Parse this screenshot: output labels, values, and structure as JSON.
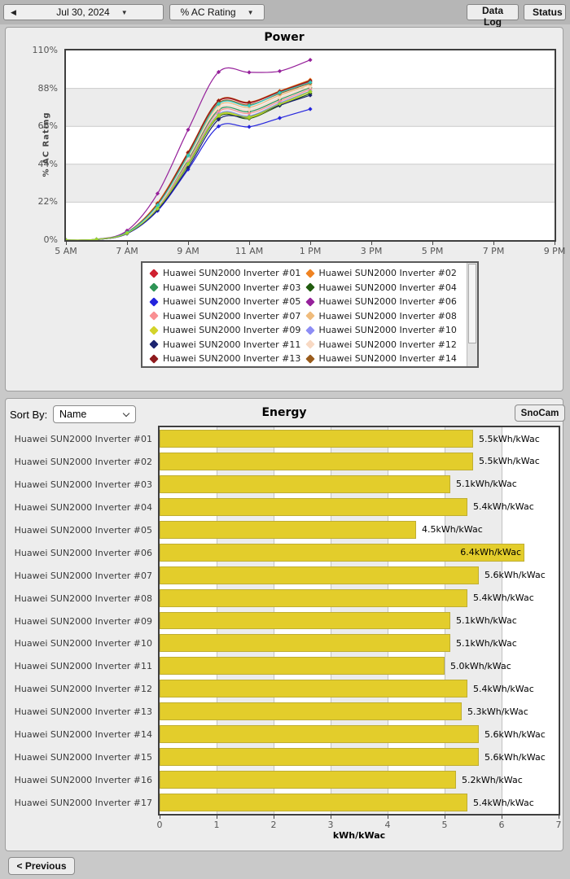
{
  "toolbar": {
    "date": "Jul 30, 2024",
    "metric": "% AC Rating",
    "data_log": "Data Log",
    "status": "Status"
  },
  "icons": {
    "back_arrow": "◀",
    "dropdown_arrow": "▼"
  },
  "energy": {
    "sort_label": "Sort By:",
    "sort_value": "Name",
    "snocam": "SnoCam"
  },
  "footer": {
    "previous": "< Previous"
  },
  "legend": {
    "visible_items": 14
  },
  "chart_data": [
    {
      "type": "line",
      "title": "Power",
      "ylabel": "% AC Rating",
      "ylim": [
        0,
        110
      ],
      "y_ticks": [
        {
          "label": "0%",
          "value": 0
        },
        {
          "label": "22%",
          "value": 22
        },
        {
          "label": "44%",
          "value": 44
        },
        {
          "label": "66%",
          "value": 66
        },
        {
          "label": "88%",
          "value": 88
        },
        {
          "label": "110%",
          "value": 110
        }
      ],
      "x_range_hours": [
        5,
        21
      ],
      "x_ticks": [
        {
          "label": "5 AM",
          "hour": 5
        },
        {
          "label": "7 AM",
          "hour": 7
        },
        {
          "label": "9 AM",
          "hour": 9
        },
        {
          "label": "11 AM",
          "hour": 11
        },
        {
          "label": "1 PM",
          "hour": 13
        },
        {
          "label": "3 PM",
          "hour": 15
        },
        {
          "label": "5 PM",
          "hour": 17
        },
        {
          "label": "7 PM",
          "hour": 19
        },
        {
          "label": "9 PM",
          "hour": 21
        }
      ],
      "x_hours": [
        5,
        6,
        7,
        8,
        9,
        10,
        11,
        12,
        13
      ],
      "series": [
        {
          "name": "Huawei SUN2000 Inverter #01",
          "color": "#cf2030",
          "values": [
            0,
            0.4,
            4.5,
            21,
            50.5,
            80.5,
            79.5,
            86,
            92
          ]
        },
        {
          "name": "Huawei SUN2000 Inverter #02",
          "color": "#ef8322",
          "values": [
            0,
            0.4,
            4.6,
            21.5,
            51,
            81,
            80,
            86.5,
            93
          ]
        },
        {
          "name": "Huawei SUN2000 Inverter #03",
          "color": "#2e9455",
          "values": [
            0,
            0.4,
            4.2,
            19,
            46.5,
            75.5,
            74.5,
            81.5,
            88.5
          ]
        },
        {
          "name": "Huawei SUN2000 Inverter #04",
          "color": "#215c0f",
          "values": [
            0,
            0.4,
            3.9,
            18,
            43.5,
            71.5,
            70.5,
            78,
            85
          ]
        },
        {
          "name": "Huawei SUN2000 Inverter #05",
          "color": "#2424dd",
          "values": [
            0,
            0.3,
            3.7,
            17,
            41,
            66,
            65.7,
            70.8,
            76
          ]
        },
        {
          "name": "Huawei SUN2000 Inverter #06",
          "color": "#96219b",
          "values": [
            0,
            0.5,
            5.5,
            27,
            64,
            97.5,
            97.3,
            98,
            104.5
          ]
        },
        {
          "name": "Huawei SUN2000 Inverter #07",
          "color": "#f98f92",
          "values": [
            0,
            0.4,
            4.1,
            19,
            45.5,
            74.5,
            73.5,
            80.5,
            87.5
          ]
        },
        {
          "name": "Huawei SUN2000 Inverter #08",
          "color": "#f0bc7c",
          "values": [
            0,
            0.4,
            4.3,
            20,
            48.5,
            78,
            77,
            84,
            90
          ]
        },
        {
          "name": "Huawei SUN2000 Inverter #09",
          "color": "#d3d32a",
          "values": [
            0,
            0.4,
            3.9,
            18,
            44,
            72,
            71,
            78.5,
            86
          ]
        },
        {
          "name": "Huawei SUN2000 Inverter #10",
          "color": "#8d8df5",
          "values": [
            0,
            0.4,
            4.0,
            18.5,
            44.5,
            73,
            72,
            79.5,
            86.5
          ]
        },
        {
          "name": "Huawei SUN2000 Inverter #11",
          "color": "#1c2470",
          "values": [
            0,
            0.3,
            3.8,
            17.5,
            42,
            70,
            71.5,
            78.2,
            84
          ]
        },
        {
          "name": "Huawei SUN2000 Inverter #12",
          "color": "#f8d9c3",
          "values": [
            0,
            0.4,
            4.2,
            19.5,
            47.5,
            76.5,
            75.5,
            82.5,
            89
          ]
        },
        {
          "name": "Huawei SUN2000 Inverter #13",
          "color": "#8f1a1d",
          "values": [
            0,
            0.4,
            4.5,
            21,
            50.7,
            80.8,
            79.8,
            86.2,
            92.5
          ]
        },
        {
          "name": "Huawei SUN2000 Inverter #14",
          "color": "#9a5c1c",
          "values": [
            0,
            0.4,
            4.4,
            20.5,
            49.5,
            79.5,
            78.5,
            85,
            91
          ]
        },
        {
          "name": "Huawei SUN2000 Inverter #15",
          "color": "#2cc9c0",
          "values": [
            0,
            0.4,
            4.4,
            20.2,
            49,
            79,
            78,
            85.5,
            91.5
          ]
        },
        {
          "name": "Huawei SUN2000 Inverter #16",
          "color": "#9fd42e",
          "values": [
            0,
            0.4,
            4.0,
            18.3,
            44.2,
            72.5,
            71.5,
            79,
            86.2
          ]
        }
      ]
    },
    {
      "type": "bar",
      "title": "Energy",
      "orientation": "horizontal",
      "xlabel": "kWh/kWac",
      "xlim": [
        0,
        7
      ],
      "x_ticks": [
        0,
        1,
        2,
        3,
        4,
        5,
        6,
        7
      ],
      "bar_color": "#e3cd2b",
      "categories": [
        "Huawei SUN2000 Inverter #01",
        "Huawei SUN2000 Inverter #02",
        "Huawei SUN2000 Inverter #03",
        "Huawei SUN2000 Inverter #04",
        "Huawei SUN2000 Inverter #05",
        "Huawei SUN2000 Inverter #06",
        "Huawei SUN2000 Inverter #07",
        "Huawei SUN2000 Inverter #08",
        "Huawei SUN2000 Inverter #09",
        "Huawei SUN2000 Inverter #10",
        "Huawei SUN2000 Inverter #11",
        "Huawei SUN2000 Inverter #12",
        "Huawei SUN2000 Inverter #13",
        "Huawei SUN2000 Inverter #14",
        "Huawei SUN2000 Inverter #15",
        "Huawei SUN2000 Inverter #16",
        "Huawei SUN2000 Inverter #17"
      ],
      "values": [
        5.5,
        5.5,
        5.1,
        5.4,
        4.5,
        6.4,
        5.6,
        5.4,
        5.1,
        5.1,
        5.0,
        5.4,
        5.3,
        5.6,
        5.6,
        5.2,
        5.4
      ],
      "value_labels": [
        "5.5kWh/kWac",
        "5.5kWh/kWac",
        "5.1kWh/kWac",
        "5.4kWh/kWac",
        "4.5kWh/kWac",
        "6.4kWh/kWac",
        "5.6kWh/kWac",
        "5.4kWh/kWac",
        "5.1kWh/kWac",
        "5.1kWh/kWac",
        "5.0kWh/kWac",
        "5.4kWh/kWac",
        "5.3kWh/kWac",
        "5.6kWh/kWac",
        "5.6kWh/kWac",
        "5.2kWh/kWac",
        "5.4kWh/kWac"
      ]
    }
  ]
}
